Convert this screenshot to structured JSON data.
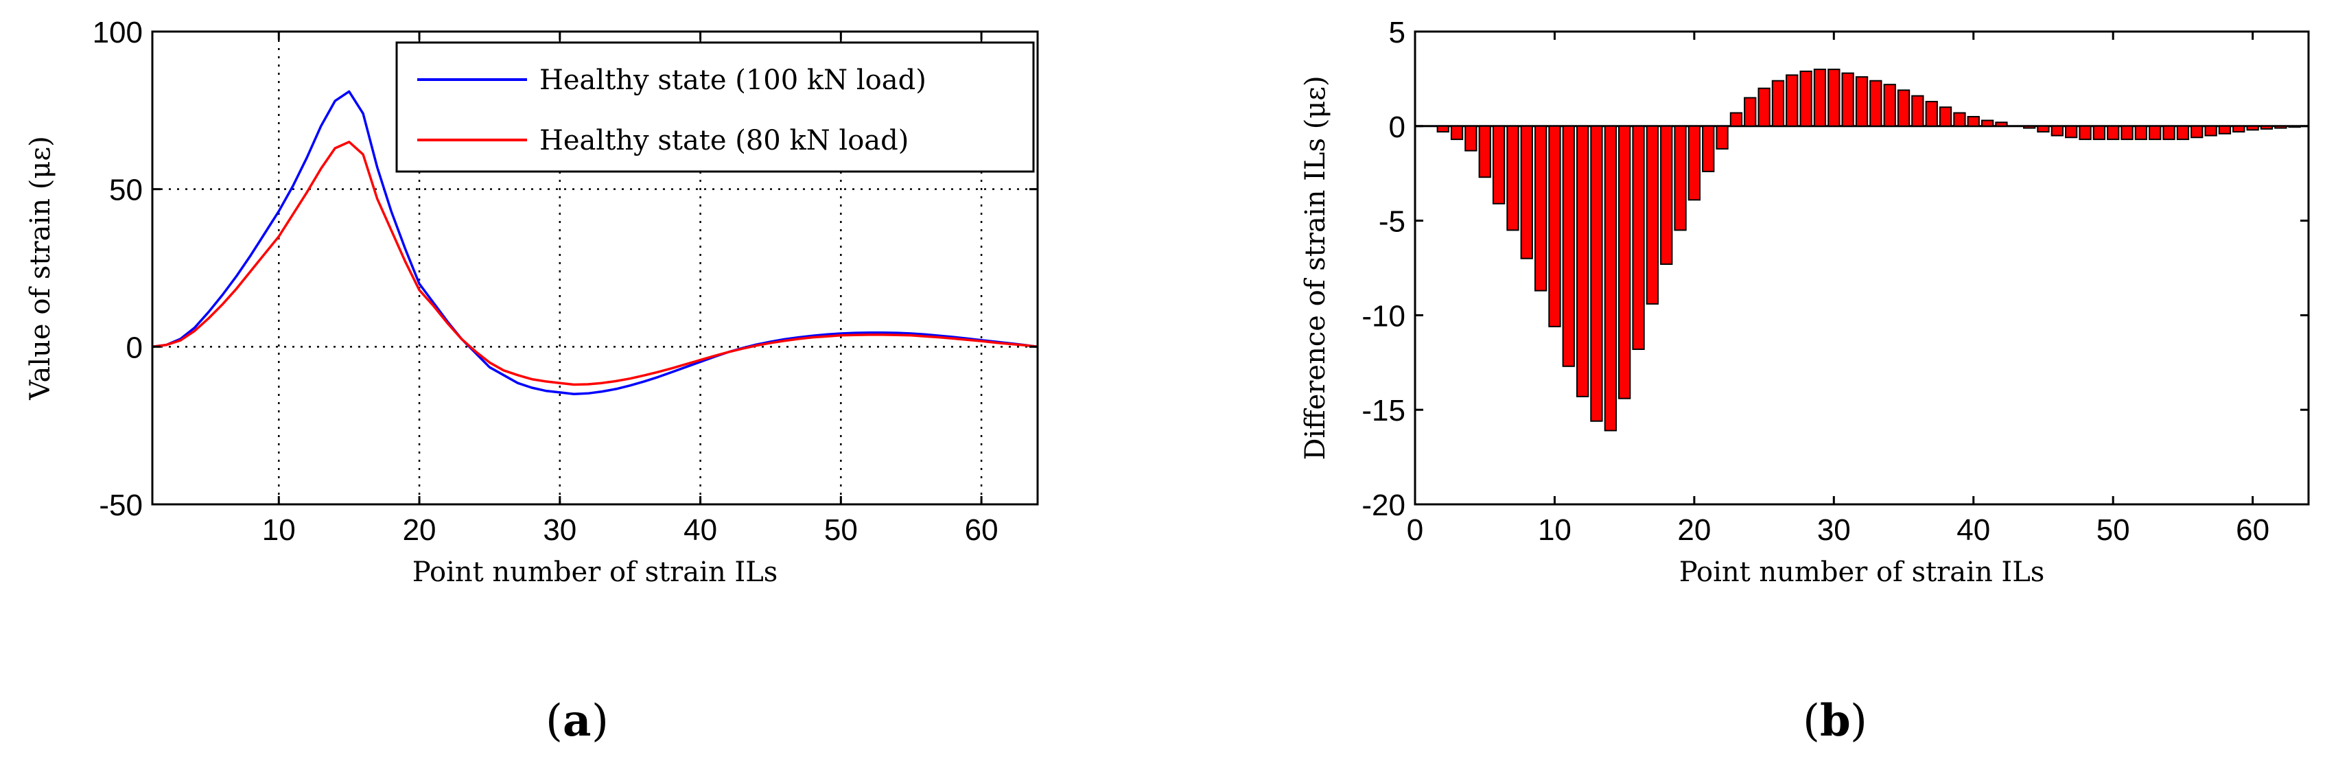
{
  "chart_data": [
    {
      "type": "line",
      "panel": "a",
      "xlabel": "Point number of strain ILs",
      "ylabel": "Value of strain (με)",
      "xlim": [
        1,
        64
      ],
      "ylim": [
        -50,
        100
      ],
      "xticks": [
        10,
        20,
        30,
        40,
        50,
        60
      ],
      "yticks": [
        -50,
        0,
        50,
        100
      ],
      "grid": true,
      "legend_position": "top-right",
      "x": [
        1,
        2,
        3,
        4,
        5,
        6,
        7,
        8,
        9,
        10,
        11,
        12,
        13,
        14,
        15,
        16,
        17,
        18,
        19,
        20,
        21,
        22,
        23,
        24,
        25,
        26,
        27,
        28,
        29,
        30,
        31,
        32,
        33,
        34,
        35,
        36,
        37,
        38,
        39,
        40,
        41,
        42,
        43,
        44,
        45,
        46,
        47,
        48,
        49,
        50,
        51,
        52,
        53,
        54,
        55,
        56,
        57,
        58,
        59,
        60,
        61,
        62,
        63,
        64
      ],
      "series": [
        {
          "name": "Healthy state (100 kN load)",
          "color": "#0000ff",
          "values": [
            0,
            0.6,
            2.5,
            6,
            11,
            16.5,
            22.5,
            29,
            36,
            43,
            51,
            60,
            70,
            78,
            81,
            74,
            57,
            43,
            31,
            20,
            14,
            8,
            2.5,
            -2,
            -6.5,
            -9,
            -11.5,
            -13,
            -14,
            -14.5,
            -15,
            -14.8,
            -14.2,
            -13.4,
            -12.3,
            -11,
            -9.6,
            -8,
            -6.4,
            -4.8,
            -3.2,
            -1.7,
            -0.4,
            0.7,
            1.6,
            2.4,
            3,
            3.5,
            3.9,
            4.2,
            4.4,
            4.5,
            4.5,
            4.4,
            4.2,
            3.9,
            3.5,
            3.1,
            2.6,
            2.1,
            1.6,
            1.1,
            0.6,
            0
          ]
        },
        {
          "name": "Healthy state (80 kN load)",
          "color": "#ff0000",
          "values": [
            0,
            0.6,
            2,
            5,
            9,
            13.5,
            18.5,
            24,
            29.5,
            35,
            42,
            49,
            56.5,
            63,
            65,
            61,
            47,
            37,
            27,
            18,
            13,
            7.5,
            2.5,
            -1.5,
            -5,
            -7.5,
            -9,
            -10.3,
            -11,
            -11.5,
            -12,
            -11.9,
            -11.5,
            -10.9,
            -10.1,
            -9.1,
            -8,
            -6.8,
            -5.5,
            -4.2,
            -2.9,
            -1.7,
            -0.6,
            0.4,
            1.2,
            1.9,
            2.5,
            3,
            3.3,
            3.6,
            3.7,
            3.8,
            3.8,
            3.7,
            3.6,
            3.3,
            3,
            2.6,
            2.2,
            1.8,
            1.3,
            0.9,
            0.5,
            0
          ]
        }
      ]
    },
    {
      "type": "bar",
      "panel": "b",
      "xlabel": "Point number of strain ILs",
      "ylabel": "Difference of strain ILs (με)",
      "xlim": [
        0,
        64
      ],
      "ylim": [
        -20,
        5
      ],
      "xticks": [
        0,
        10,
        20,
        30,
        40,
        50,
        60
      ],
      "yticks": [
        -20,
        -15,
        -10,
        -5,
        0,
        5
      ],
      "grid": false,
      "bar_color": "#ff0000",
      "x": [
        1,
        2,
        3,
        4,
        5,
        6,
        7,
        8,
        9,
        10,
        11,
        12,
        13,
        14,
        15,
        16,
        17,
        18,
        19,
        20,
        21,
        22,
        23,
        24,
        25,
        26,
        27,
        28,
        29,
        30,
        31,
        32,
        33,
        34,
        35,
        36,
        37,
        38,
        39,
        40,
        41,
        42,
        43,
        44,
        45,
        46,
        47,
        48,
        49,
        50,
        51,
        52,
        53,
        54,
        55,
        56,
        57,
        58,
        59,
        60,
        61,
        62,
        63,
        64
      ],
      "values": [
        0,
        -0.3,
        -0.7,
        -1.3,
        -2.7,
        -4.1,
        -5.5,
        -7,
        -8.7,
        -10.6,
        -12.7,
        -14.3,
        -15.6,
        -16.1,
        -14.4,
        -11.8,
        -9.4,
        -7.3,
        -5.5,
        -3.9,
        -2.4,
        -1.2,
        0.7,
        1.5,
        2,
        2.4,
        2.7,
        2.9,
        3,
        3,
        2.8,
        2.6,
        2.4,
        2.2,
        1.9,
        1.6,
        1.3,
        1,
        0.7,
        0.5,
        0.3,
        0.2,
        0,
        -0.1,
        -0.3,
        -0.5,
        -0.6,
        -0.7,
        -0.7,
        -0.7,
        -0.7,
        -0.7,
        -0.7,
        -0.7,
        -0.7,
        -0.6,
        -0.5,
        -0.4,
        -0.3,
        -0.2,
        -0.15,
        -0.1,
        -0.05,
        0
      ]
    }
  ],
  "captions": {
    "a": "a",
    "b": "b"
  }
}
